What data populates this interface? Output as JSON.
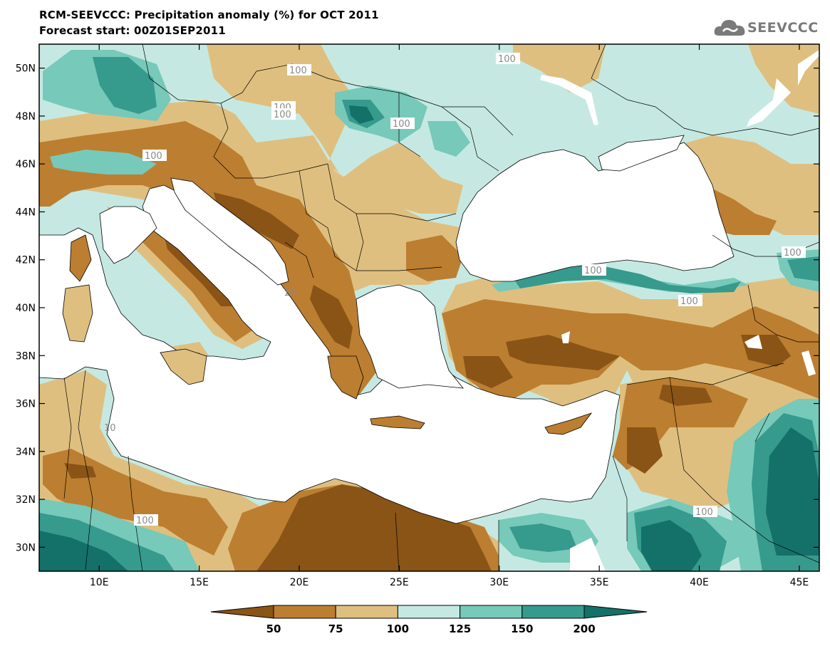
{
  "title_line1": "RCM-SEEVCCC: Precipitation anomaly (%) for OCT 2011",
  "title_line2": "Forecast start: 00Z01SEP2011",
  "logo_text": "SEEVCCC",
  "map": {
    "lon_range": [
      7,
      46
    ],
    "lat_range": [
      29,
      51
    ],
    "lat_ticks": [
      "50N",
      "48N",
      "46N",
      "44N",
      "42N",
      "40N",
      "38N",
      "36N",
      "34N",
      "32N",
      "30N"
    ],
    "lon_ticks": [
      "10E",
      "15E",
      "20E",
      "25E",
      "30E",
      "35E",
      "40E",
      "45E"
    ],
    "contour_labels": [
      "100",
      "100",
      "100",
      "100",
      "100",
      "100",
      "100",
      "100",
      "100",
      "100",
      "100",
      "10",
      "10"
    ]
  },
  "legend": {
    "boundaries": [
      "50",
      "75",
      "100",
      "125",
      "150",
      "200"
    ],
    "colors": [
      "#8a5416",
      "#bc7e30",
      "#dfbf7f",
      "#c5e9e2",
      "#77c9ba",
      "#369a8d",
      "#13716a"
    ]
  }
}
